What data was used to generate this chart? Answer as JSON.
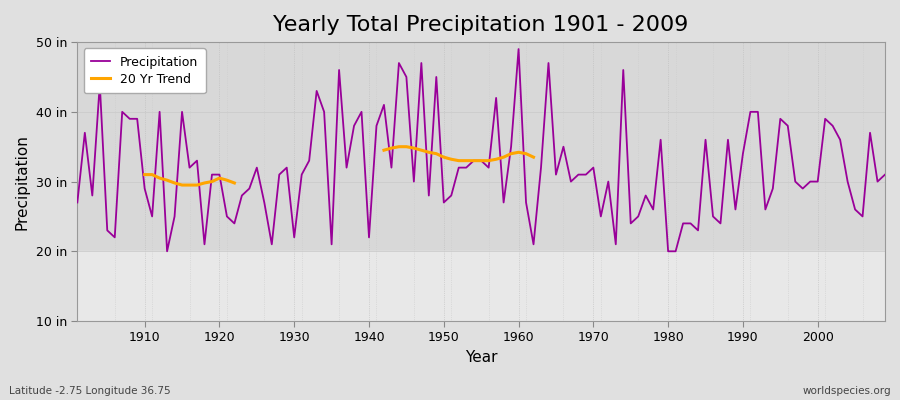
{
  "title": "Yearly Total Precipitation 1901 - 2009",
  "xlabel": "Year",
  "ylabel": "Precipitation",
  "lat_lon_label": "Latitude -2.75 Longitude 36.75",
  "watermark": "worldspecies.org",
  "years": [
    1901,
    1902,
    1903,
    1904,
    1905,
    1906,
    1907,
    1908,
    1909,
    1910,
    1911,
    1912,
    1913,
    1914,
    1915,
    1916,
    1917,
    1918,
    1919,
    1920,
    1921,
    1922,
    1923,
    1924,
    1925,
    1926,
    1927,
    1928,
    1929,
    1930,
    1931,
    1932,
    1933,
    1934,
    1935,
    1936,
    1937,
    1938,
    1939,
    1940,
    1941,
    1942,
    1943,
    1944,
    1945,
    1946,
    1947,
    1948,
    1949,
    1950,
    1951,
    1952,
    1953,
    1954,
    1955,
    1956,
    1957,
    1958,
    1959,
    1960,
    1961,
    1962,
    1963,
    1964,
    1965,
    1966,
    1967,
    1968,
    1969,
    1970,
    1971,
    1972,
    1973,
    1974,
    1975,
    1976,
    1977,
    1978,
    1979,
    1980,
    1981,
    1982,
    1983,
    1984,
    1985,
    1986,
    1987,
    1988,
    1989,
    1990,
    1991,
    1992,
    1993,
    1994,
    1995,
    1996,
    1997,
    1998,
    1999,
    2000,
    2001,
    2002,
    2003,
    2004,
    2005,
    2006,
    2007,
    2008,
    2009
  ],
  "precip": [
    27,
    37,
    28,
    44,
    23,
    22,
    40,
    39,
    39,
    29,
    25,
    40,
    20,
    25,
    40,
    32,
    33,
    21,
    31,
    31,
    25,
    24,
    28,
    29,
    32,
    27,
    21,
    31,
    32,
    22,
    31,
    33,
    43,
    40,
    21,
    46,
    32,
    38,
    40,
    22,
    38,
    41,
    32,
    47,
    45,
    30,
    47,
    28,
    45,
    27,
    28,
    32,
    32,
    33,
    33,
    32,
    42,
    27,
    35,
    49,
    27,
    21,
    32,
    47,
    31,
    35,
    30,
    31,
    31,
    32,
    25,
    30,
    21,
    46,
    24,
    25,
    28,
    26,
    36,
    20,
    20,
    24,
    24,
    23,
    36,
    25,
    24,
    36,
    26,
    34,
    40,
    40,
    26,
    29,
    39,
    38,
    30,
    29,
    30,
    30,
    39,
    38,
    36,
    30,
    26,
    25,
    37,
    30,
    31
  ],
  "trend_segment1_years": [
    1910,
    1911,
    1912,
    1913,
    1914,
    1915,
    1916,
    1917,
    1918,
    1919,
    1920,
    1921,
    1922
  ],
  "trend_segment1_values": [
    31.0,
    31.0,
    30.5,
    30.2,
    29.8,
    29.5,
    29.5,
    29.5,
    29.8,
    30.0,
    30.5,
    30.2,
    29.8
  ],
  "trend_segment2_years": [
    1942,
    1943,
    1944,
    1945,
    1946,
    1947,
    1948,
    1949,
    1950,
    1951,
    1952,
    1953,
    1954,
    1955,
    1956,
    1957,
    1958,
    1959,
    1960,
    1961,
    1962
  ],
  "trend_segment2_values": [
    34.5,
    34.8,
    35.0,
    35.0,
    34.8,
    34.5,
    34.2,
    34.0,
    33.5,
    33.2,
    33.0,
    33.0,
    33.0,
    33.0,
    33.0,
    33.2,
    33.5,
    34.0,
    34.2,
    34.0,
    33.5
  ],
  "precip_color": "#990099",
  "trend_color": "#FFA500",
  "fig_bg_color": "#e0e0e0",
  "plot_bg_color_upper": "#d8d8d8",
  "plot_bg_color_lower": "#e8e8e8",
  "grid_color_major": "#ffffff",
  "grid_color_minor": "#c8c8c8",
  "ylim": [
    10,
    50
  ],
  "yticks": [
    10,
    20,
    30,
    40,
    50
  ],
  "ytick_labels": [
    "10 in",
    "20 in",
    "30 in",
    "40 in",
    "50 in"
  ],
  "xlim": [
    1901,
    2009
  ],
  "xticks": [
    1910,
    1920,
    1930,
    1940,
    1950,
    1960,
    1970,
    1980,
    1990,
    2000
  ],
  "title_fontsize": 16,
  "axis_label_fontsize": 11,
  "tick_fontsize": 9,
  "legend_fontsize": 9
}
